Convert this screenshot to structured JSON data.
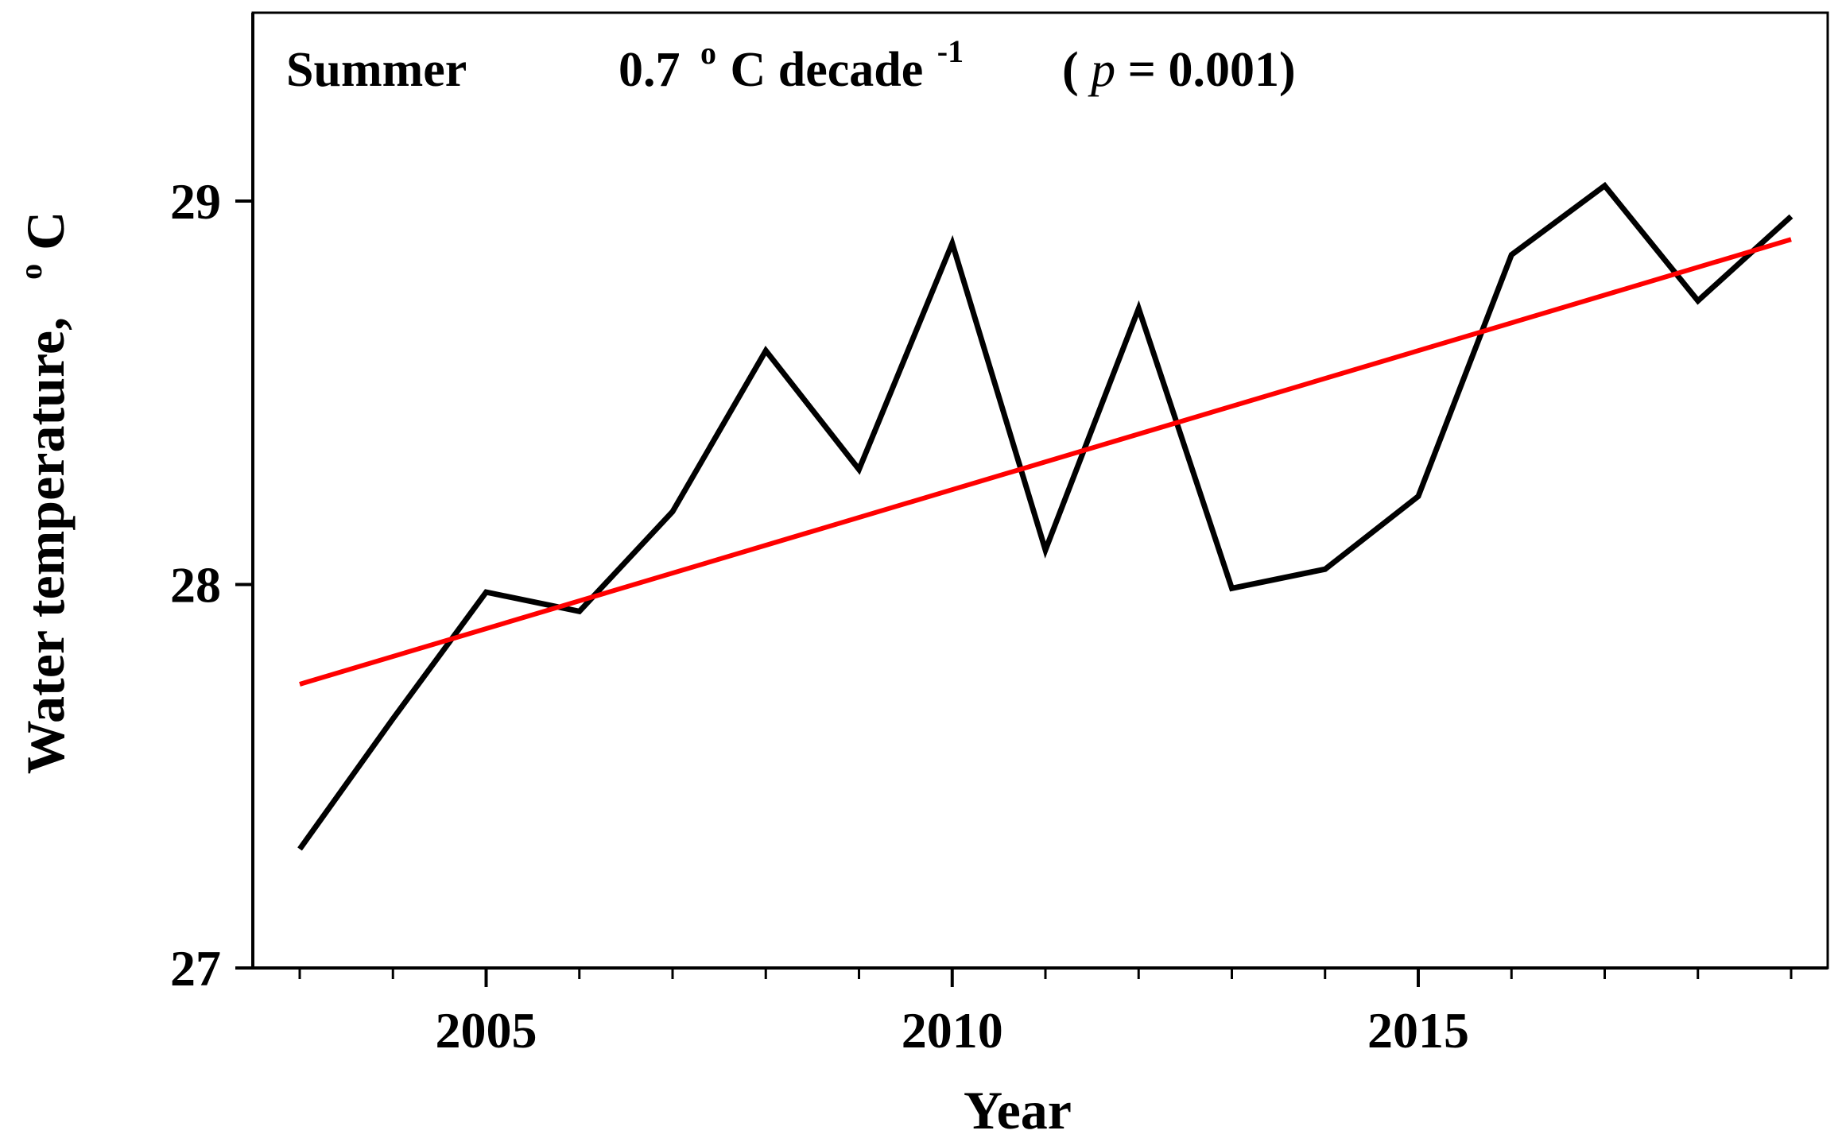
{
  "chart_data": {
    "type": "line",
    "title": "",
    "xlabel": "Year",
    "ylabel": "Water temperature,",
    "ylabel_unit": "°C",
    "ylabel_unit_sup": "o",
    "ylabel_unit_main": "C",
    "xlim": [
      2002,
      2019.5
    ],
    "ylim": [
      27,
      29.5
    ],
    "x_ticks": [
      2005,
      2010,
      2015
    ],
    "x_minor_ticks": [
      2003,
      2004,
      2005,
      2006,
      2007,
      2008,
      2009,
      2010,
      2011,
      2012,
      2013,
      2014,
      2015,
      2016,
      2017,
      2018,
      2019
    ],
    "y_ticks": [
      27,
      28,
      29
    ],
    "grid": false,
    "annotation": {
      "season": "Summer",
      "rate_value": "0.7",
      "rate_degree": "o",
      "rate_unit": "C decade",
      "rate_exponent": "-1",
      "p_open": "(",
      "p_symbol": "p",
      "p_equals": " = 0.001)"
    },
    "series": [
      {
        "name": "Water temperature",
        "color": "#000000",
        "x": [
          2003,
          2004,
          2005,
          2006,
          2007,
          2008,
          2009,
          2010,
          2011,
          2012,
          2013,
          2014,
          2015,
          2016,
          2017,
          2018,
          2019
        ],
        "values": [
          27.31,
          27.65,
          27.98,
          27.93,
          28.19,
          28.61,
          28.3,
          28.89,
          28.09,
          28.72,
          27.99,
          28.04,
          28.23,
          28.86,
          29.04,
          28.74,
          28.96
        ]
      },
      {
        "name": "Linear trend",
        "color": "#ff0000",
        "x": [
          2003,
          2019
        ],
        "values": [
          27.74,
          28.9
        ]
      }
    ]
  }
}
